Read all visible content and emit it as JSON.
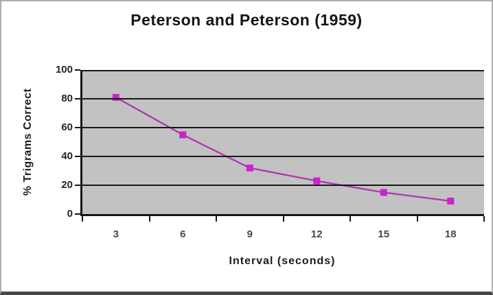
{
  "chart_data": {
    "type": "line",
    "title": "Peterson and Peterson (1959)",
    "xlabel": "Interval (seconds)",
    "ylabel": "% Trigrams Correct",
    "categories": [
      3,
      6,
      9,
      12,
      15,
      18
    ],
    "values": [
      81,
      55,
      32,
      23,
      15,
      9
    ],
    "ylim": [
      0,
      100
    ],
    "yticks": [
      0,
      20,
      40,
      60,
      80,
      100
    ],
    "grid": "horizontal",
    "legend": "none",
    "marker": "square",
    "colors": {
      "line": "#b238b2",
      "marker": "#cc22cc",
      "plot_background": "#c2c2c2",
      "gridline": "#161616",
      "axis": "#161616",
      "title_text": "#141414",
      "tick_text": "#242424",
      "frame_border": "#adadad",
      "frame_bottom_border": "#474747"
    }
  }
}
